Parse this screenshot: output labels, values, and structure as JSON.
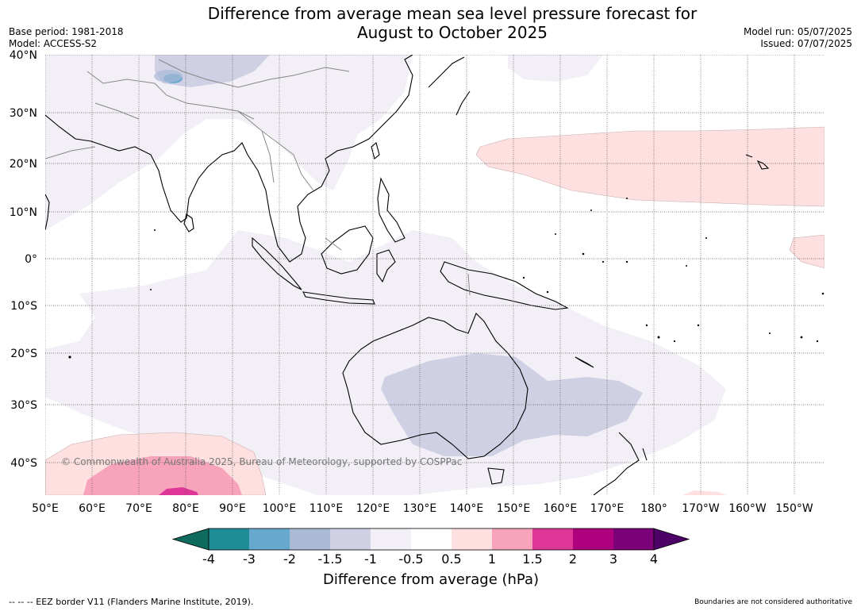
{
  "title_line1": "Difference from average mean sea level pressure forecast for",
  "title_line2": "August to October 2025",
  "base_period": "Base period: 1981-2018",
  "model": "Model: ACCESS-S2",
  "model_run": "Model run: 05/07/2025",
  "issued": "Issued: 07/07/2025",
  "copyright": "© Commonwealth of Australia 2025, Bureau of Meteorology, supported by COSPPac",
  "lat_labels": [
    "40°N",
    "30°N",
    "20°N",
    "10°N",
    "0°",
    "10°S",
    "20°S",
    "30°S",
    "40°S"
  ],
  "lon_labels": [
    "50°E",
    "60°E",
    "70°E",
    "80°E",
    "90°E",
    "100°E",
    "110°E",
    "120°E",
    "130°E",
    "140°E",
    "150°E",
    "160°E",
    "170°E",
    "180°",
    "170°W",
    "160°W",
    "150°W"
  ],
  "colorbar": {
    "label": "Difference from average (hPa)",
    "ticks": [
      "-4",
      "-3",
      "-2",
      "-1.5",
      "-1",
      "-0.5",
      "0.5",
      "1",
      "1.5",
      "2",
      "3",
      "4"
    ],
    "colors": [
      "#0e6b5e",
      "#1e8e96",
      "#67a8cf",
      "#a9b9d6",
      "#cfd0e4",
      "#f3eff6",
      "#ffffff",
      "#fde0df",
      "#f7a3bc",
      "#de3696",
      "#ad017e",
      "#7a0177",
      "#4d0066"
    ]
  },
  "footer_left": "--  --  -- EEZ border V11 (Flanders Marine Institute, 2019).",
  "footer_right": "Boundaries are not considered authoritative"
}
